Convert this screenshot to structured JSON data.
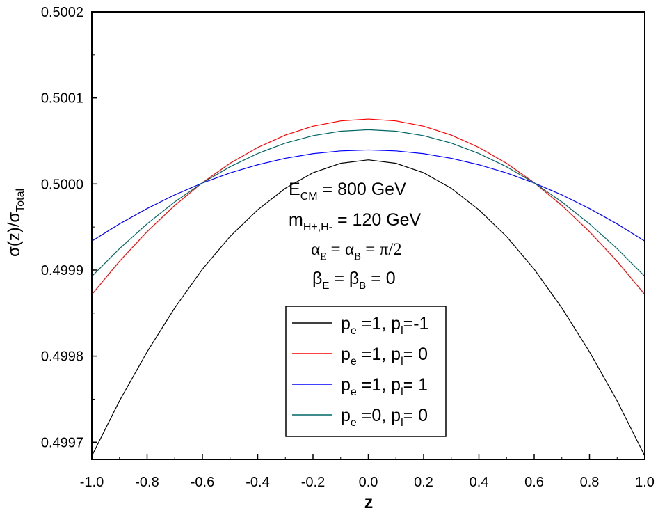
{
  "chart_data": {
    "type": "line",
    "xlabel": "z",
    "ylabel": {
      "main": "σ(z)/σ",
      "sub": "Total"
    },
    "xlim": [
      -1.0,
      1.0
    ],
    "ylim": [
      0.49968,
      0.5002
    ],
    "x_ticks": [
      "-1.0",
      "-0.8",
      "-0.6",
      "-0.4",
      "-0.2",
      "0.0",
      "0.2",
      "0.4",
      "0.6",
      "0.8",
      "1.0"
    ],
    "y_ticks": [
      "0.4997",
      "0.4998",
      "0.4999",
      "0.5000",
      "0.5001",
      "0.5002"
    ],
    "annotations": [
      {
        "main": "E",
        "sub": "CM",
        "rest": " = 800 GeV"
      },
      {
        "main": "m",
        "sub": "H+,H-",
        "rest": " = 120 GeV"
      },
      {
        "parts": [
          "α",
          "E",
          " = α",
          "B",
          " = π/2"
        ]
      },
      {
        "parts": [
          "β",
          "E",
          " = β",
          "B",
          " = 0"
        ]
      }
    ],
    "legend": {
      "placement": "lower-center"
    },
    "series": [
      {
        "name": "p_e =1, p_l=-1",
        "label_parts": [
          "p",
          "e",
          " =1, p",
          "l",
          "=-1"
        ],
        "color": "#000000",
        "x": [
          -1.0,
          -0.9,
          -0.8,
          -0.7,
          -0.6,
          -0.5,
          -0.4,
          -0.3,
          -0.2,
          -0.1,
          0.0,
          0.1,
          0.2,
          0.3,
          0.4,
          0.5,
          0.6,
          0.7,
          0.8,
          0.9,
          1.0
        ],
        "y": [
          0.499684,
          0.499748,
          0.499805,
          0.499856,
          0.499901,
          0.499939,
          0.49997,
          0.499995,
          0.500013,
          0.500024,
          0.500028,
          0.500024,
          0.500013,
          0.499995,
          0.49997,
          0.499939,
          0.499901,
          0.499856,
          0.499805,
          0.499748,
          0.499684
        ]
      },
      {
        "name": "p_e =1, p_l= 0",
        "label_parts": [
          "p",
          "e",
          " =1, p",
          "l",
          "= 0"
        ],
        "color": "#ff0000",
        "x": [
          -1.0,
          -0.9,
          -0.8,
          -0.7,
          -0.6,
          -0.5,
          -0.4,
          -0.3,
          -0.2,
          -0.1,
          0.0,
          0.1,
          0.2,
          0.3,
          0.4,
          0.5,
          0.6,
          0.7,
          0.8,
          0.9,
          1.0
        ],
        "y": [
          0.4998716,
          0.4999101,
          0.4999446,
          0.4999751,
          0.5000015,
          0.500024,
          0.5000424,
          0.5000568,
          0.5000671,
          0.5000733,
          0.5000754,
          0.5000733,
          0.5000671,
          0.5000568,
          0.5000424,
          0.500024,
          0.5000015,
          0.4999751,
          0.4999446,
          0.4999101,
          0.4998716
        ]
      },
      {
        "name": "p_e =1, p_l= 1",
        "label_parts": [
          "p",
          "e",
          " =1, p",
          "l",
          "= 1"
        ],
        "color": "#0000ff",
        "x": [
          -1.0,
          -0.9,
          -0.8,
          -0.7,
          -0.6,
          -0.5,
          -0.4,
          -0.3,
          -0.2,
          -0.1,
          0.0,
          0.1,
          0.2,
          0.3,
          0.4,
          0.5,
          0.6,
          0.7,
          0.8,
          0.9,
          1.0
        ],
        "y": [
          0.4999336,
          0.4999536,
          0.4999715,
          0.4999874,
          0.5000011,
          0.5000128,
          0.5000223,
          0.5000298,
          0.5000352,
          0.5000384,
          0.5000395,
          0.5000384,
          0.5000352,
          0.5000298,
          0.5000223,
          0.5000128,
          0.5000011,
          0.4999874,
          0.4999715,
          0.4999536,
          0.4999336
        ]
      },
      {
        "name": "p_e =0, p_l= 0",
        "label_parts": [
          "p",
          "e",
          " =0, p",
          "l",
          "= 0"
        ],
        "color": "#006666",
        "x": [
          -1.0,
          -0.9,
          -0.8,
          -0.7,
          -0.6,
          -0.5,
          -0.4,
          -0.3,
          -0.2,
          -0.1,
          0.0,
          0.1,
          0.2,
          0.3,
          0.4,
          0.5,
          0.6,
          0.7,
          0.8,
          0.9,
          1.0
        ],
        "y": [
          0.4998926,
          0.4999248,
          0.4999537,
          0.4999792,
          0.5000013,
          0.50002,
          0.5000354,
          0.5000475,
          0.5000561,
          0.5000613,
          0.500063,
          0.5000613,
          0.5000561,
          0.5000475,
          0.5000354,
          0.50002,
          0.5000013,
          0.4999792,
          0.4999537,
          0.4999248,
          0.4998926
        ]
      }
    ]
  }
}
